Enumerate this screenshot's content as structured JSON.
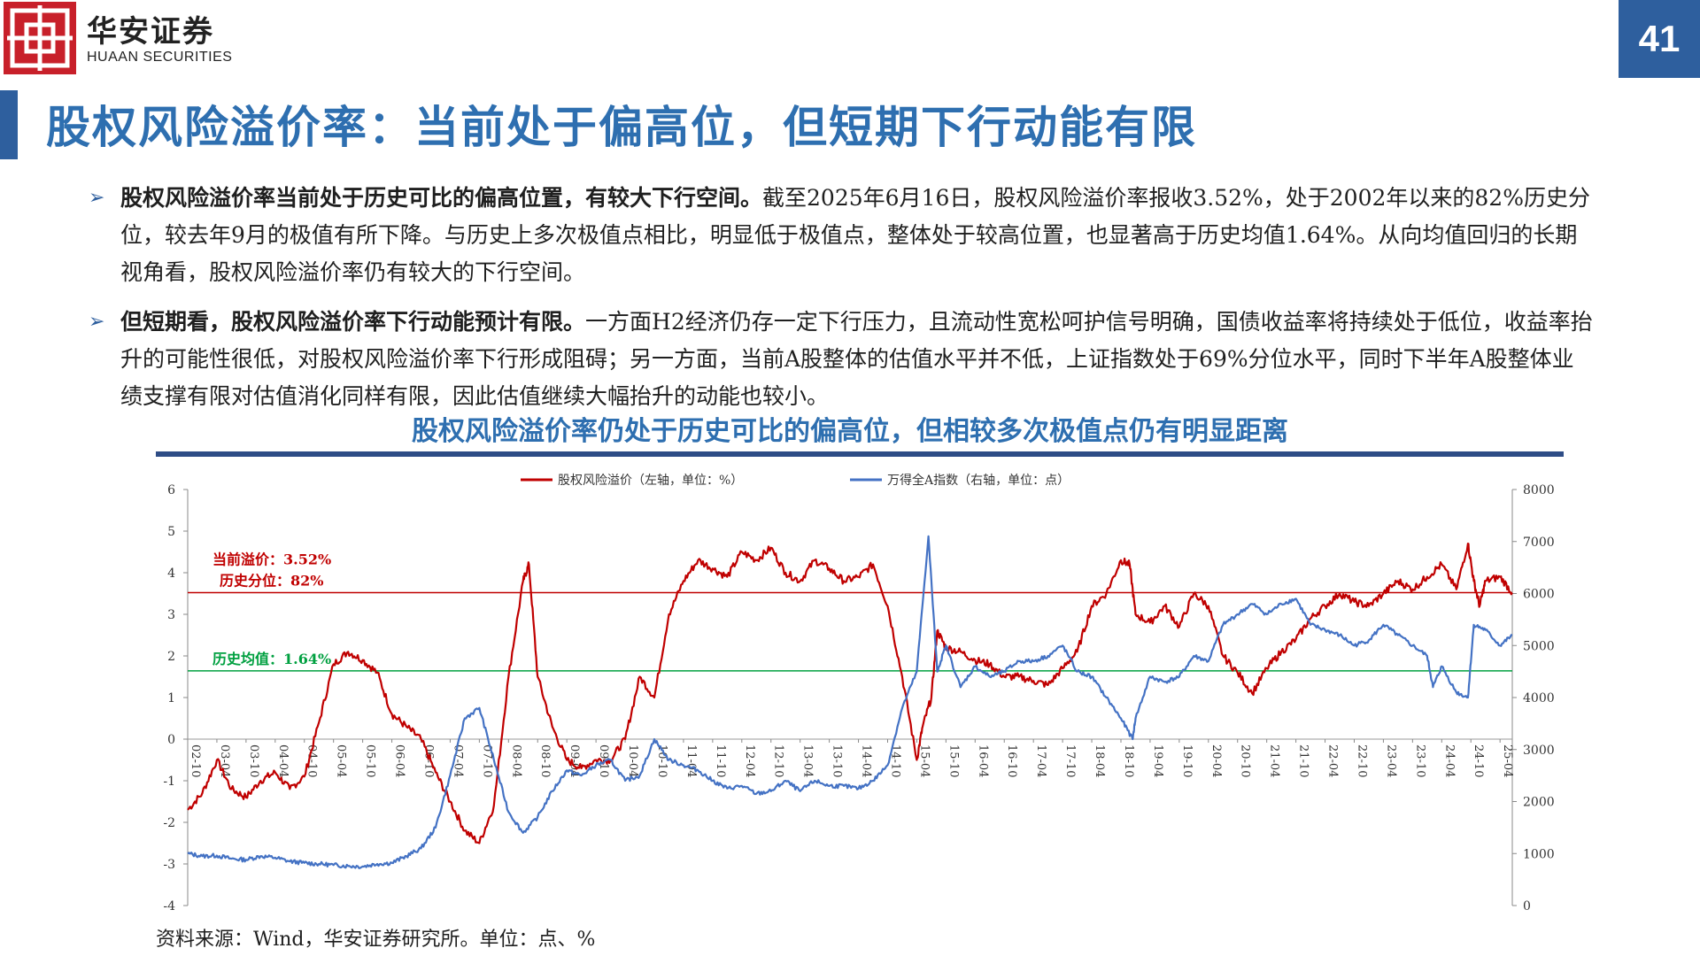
{
  "header": {
    "brand_cn": "华安证券",
    "brand_en": "HUAAN SECURITIES",
    "page_number": "41",
    "title": "股权风险溢价率：当前处于偏高位，但短期下行动能有限"
  },
  "bullets": [
    {
      "bold": "股权风险溢价率当前处于历史可比的偏高位置，有较大下行空间。",
      "text": "截至2025年6月16日，股权风险溢价率报收3.52%，处于2002年以来的82%历史分位，较去年9月的极值有所下降。与历史上多次极值点相比，明显低于极值点，整体处于较高位置，也显著高于历史均值1.64%。从向均值回归的长期视角看，股权风险溢价率仍有较大的下行空间。"
    },
    {
      "bold": "但短期看，股权风险溢价率下行动能预计有限。",
      "text": "一方面H2经济仍存一定下行压力，且流动性宽松呵护信号明确，国债收益率将持续处于低位，收益率抬升的可能性很低，对股权风险溢价率下行形成阻碍；另一方面，当前A股整体的估值水平并不低，上证指数处于69%分位水平，同时下半年A股整体业绩支撑有限对估值消化同样有限，因此估值继续大幅抬升的动能也较小。"
    }
  ],
  "source": "资料来源：Wind，华安证券研究所。单位：点、%",
  "colors": {
    "accent": "#2e5f9e",
    "title": "#2e6fb0",
    "brand_red": "#c8202a",
    "erp": "#c00000",
    "index": "#4472c4",
    "mean_line": "#00a040"
  },
  "chart_data": {
    "type": "line",
    "title": "股权风险溢价率仍处于历史可比的偏高位，但相较多次极值点仍有明显距离",
    "legend_position": "top",
    "y_left": {
      "ticks": [
        -4,
        -3,
        -2,
        -1,
        0,
        1,
        2,
        3,
        4,
        5,
        6
      ],
      "range": [
        -4,
        6
      ]
    },
    "y_right": {
      "ticks": [
        0,
        1000,
        2000,
        3000,
        4000,
        5000,
        6000,
        7000,
        8000
      ],
      "range": [
        0,
        8000
      ]
    },
    "x_ticks": [
      "02-10",
      "03-04",
      "03-10",
      "04-04",
      "04-10",
      "05-04",
      "05-10",
      "06-04",
      "06-10",
      "07-04",
      "07-10",
      "08-04",
      "08-10",
      "09-04",
      "09-10",
      "10-04",
      "10-10",
      "11-04",
      "11-10",
      "12-04",
      "12-10",
      "13-04",
      "13-10",
      "14-04",
      "14-10",
      "15-04",
      "15-10",
      "16-04",
      "16-10",
      "17-04",
      "17-10",
      "18-04",
      "18-10",
      "19-04",
      "19-10",
      "20-04",
      "20-10",
      "21-04",
      "21-10",
      "22-04",
      "22-10",
      "23-04",
      "23-10",
      "24-04",
      "24-10",
      "25-04"
    ],
    "x_range": [
      2002.75,
      2025.46
    ],
    "series": [
      {
        "name": "股权风险溢价（左轴，单位：%）",
        "axis": "left",
        "x": [
          2002.75,
          2003.0,
          2003.25,
          2003.5,
          2003.75,
          2004.0,
          2004.25,
          2004.5,
          2004.75,
          2005.0,
          2005.25,
          2005.5,
          2005.75,
          2006.0,
          2006.25,
          2006.5,
          2006.75,
          2007.0,
          2007.25,
          2007.5,
          2007.75,
          2008.0,
          2008.25,
          2008.5,
          2008.6,
          2008.75,
          2009.0,
          2009.25,
          2009.5,
          2009.75,
          2010.0,
          2010.25,
          2010.5,
          2010.75,
          2011.0,
          2011.25,
          2011.5,
          2011.75,
          2012.0,
          2012.25,
          2012.5,
          2012.75,
          2013.0,
          2013.25,
          2013.5,
          2013.75,
          2014.0,
          2014.25,
          2014.5,
          2014.75,
          2015.0,
          2015.25,
          2015.35,
          2015.5,
          2015.6,
          2015.75,
          2016.0,
          2016.25,
          2016.5,
          2016.75,
          2017.0,
          2017.25,
          2017.5,
          2017.75,
          2018.0,
          2018.25,
          2018.5,
          2018.75,
          2018.9,
          2019.0,
          2019.25,
          2019.5,
          2019.75,
          2020.0,
          2020.25,
          2020.5,
          2020.75,
          2021.0,
          2021.25,
          2021.5,
          2021.75,
          2022.0,
          2022.25,
          2022.5,
          2022.75,
          2023.0,
          2023.25,
          2023.5,
          2023.75,
          2024.0,
          2024.25,
          2024.5,
          2024.7,
          2024.8,
          2024.9,
          2025.0,
          2025.25,
          2025.46
        ],
        "y": [
          -1.7,
          -1.3,
          -0.5,
          -1.2,
          -1.4,
          -1.0,
          -0.8,
          -1.2,
          -0.9,
          0.4,
          1.8,
          2.1,
          1.9,
          1.6,
          0.6,
          0.3,
          0.0,
          -0.8,
          -1.5,
          -2.2,
          -2.5,
          -1.6,
          1.5,
          3.8,
          4.2,
          1.5,
          0.3,
          -0.5,
          -0.7,
          -0.5,
          -0.5,
          0.0,
          1.5,
          1.0,
          3.0,
          3.8,
          4.3,
          4.1,
          3.9,
          4.5,
          4.3,
          4.6,
          4.0,
          3.8,
          4.3,
          4.1,
          3.8,
          3.9,
          4.2,
          3.2,
          1.5,
          -0.5,
          0.3,
          1.0,
          2.6,
          2.2,
          2.1,
          1.9,
          1.8,
          1.5,
          1.5,
          1.4,
          1.3,
          1.7,
          2.1,
          3.2,
          3.5,
          4.3,
          4.2,
          3.0,
          2.8,
          3.2,
          2.7,
          3.5,
          3.2,
          2.0,
          1.6,
          1.1,
          1.7,
          2.1,
          2.4,
          2.9,
          3.2,
          3.5,
          3.3,
          3.2,
          3.5,
          3.8,
          3.6,
          3.9,
          4.2,
          3.6,
          4.7,
          3.8,
          3.2,
          3.8,
          3.9,
          3.52
        ]
      },
      {
        "name": "万得全A指数（右轴，单位：点）",
        "axis": "right",
        "x": [
          2002.75,
          2003.0,
          2003.25,
          2003.5,
          2003.75,
          2004.0,
          2004.25,
          2004.5,
          2004.75,
          2005.0,
          2005.25,
          2005.5,
          2005.75,
          2006.0,
          2006.25,
          2006.5,
          2006.75,
          2007.0,
          2007.25,
          2007.5,
          2007.75,
          2008.0,
          2008.25,
          2008.5,
          2008.75,
          2009.0,
          2009.25,
          2009.5,
          2009.75,
          2010.0,
          2010.25,
          2010.5,
          2010.75,
          2011.0,
          2011.25,
          2011.5,
          2011.75,
          2012.0,
          2012.25,
          2012.5,
          2012.75,
          2013.0,
          2013.25,
          2013.5,
          2013.75,
          2014.0,
          2014.25,
          2014.5,
          2014.75,
          2015.0,
          2015.25,
          2015.45,
          2015.6,
          2015.75,
          2016.0,
          2016.25,
          2016.5,
          2016.75,
          2017.0,
          2017.25,
          2017.5,
          2017.75,
          2018.0,
          2018.25,
          2018.5,
          2018.75,
          2018.95,
          2019.0,
          2019.25,
          2019.5,
          2019.75,
          2020.0,
          2020.25,
          2020.5,
          2020.75,
          2021.0,
          2021.25,
          2021.5,
          2021.75,
          2022.0,
          2022.25,
          2022.5,
          2022.75,
          2023.0,
          2023.25,
          2023.5,
          2023.75,
          2024.0,
          2024.1,
          2024.25,
          2024.5,
          2024.7,
          2024.8,
          2025.0,
          2025.25,
          2025.46
        ],
        "y": [
          1000,
          950,
          960,
          900,
          880,
          950,
          920,
          850,
          820,
          800,
          780,
          760,
          750,
          800,
          820,
          950,
          1100,
          1500,
          2500,
          3600,
          3800,
          2800,
          1800,
          1400,
          1700,
          2200,
          2600,
          2500,
          2700,
          2800,
          2400,
          2500,
          3200,
          2800,
          2700,
          2600,
          2400,
          2250,
          2300,
          2150,
          2200,
          2400,
          2200,
          2400,
          2300,
          2300,
          2250,
          2400,
          2700,
          3800,
          4500,
          7100,
          4500,
          5000,
          4200,
          4600,
          4400,
          4500,
          4700,
          4700,
          4800,
          5000,
          4500,
          4400,
          4000,
          3600,
          3200,
          3600,
          4400,
          4300,
          4400,
          4800,
          4700,
          5400,
          5600,
          5800,
          5600,
          5800,
          5900,
          5400,
          5300,
          5200,
          5000,
          5100,
          5400,
          5200,
          5000,
          4800,
          4200,
          4600,
          4100,
          4000,
          5400,
          5300,
          5000,
          5200
        ]
      }
    ],
    "reference_lines": [
      {
        "axis": "left",
        "value": 3.52,
        "label_lines": [
          "当前溢价：3.52%",
          "历史分位：82%"
        ],
        "color": "#c00000"
      },
      {
        "axis": "left",
        "value": 1.64,
        "label_lines": [
          "历史均值：1.64%"
        ],
        "color": "#00a040"
      }
    ]
  }
}
